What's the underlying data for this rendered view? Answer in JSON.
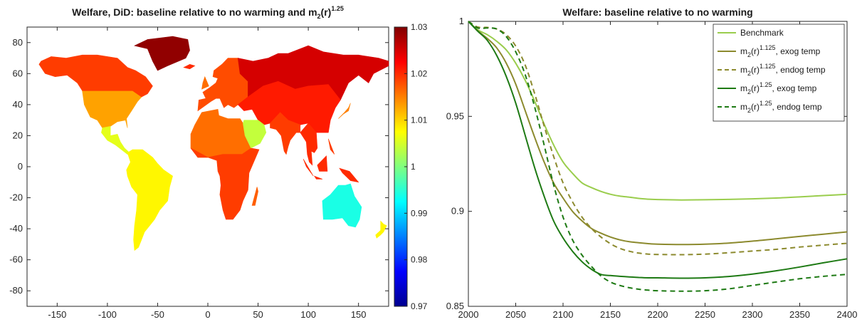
{
  "chart_data": [
    {
      "type": "heatmap",
      "title": "Welfare, DiD: baseline relative to no warming and m",
      "title_sub": "2",
      "title_mid": "(r)",
      "title_sup": "1.25",
      "xlim": [
        -180,
        180
      ],
      "ylim": [
        -90,
        90
      ],
      "x_ticks": [
        "-150",
        "-100",
        "-50",
        "0",
        "50",
        "100",
        "150"
      ],
      "x_tick_values": [
        -150,
        -100,
        -50,
        0,
        50,
        100,
        150
      ],
      "y_ticks": [
        "80",
        "60",
        "40",
        "20",
        "0",
        "-20",
        "-40",
        "-60",
        "-80"
      ],
      "y_tick_values": [
        80,
        60,
        40,
        20,
        0,
        -20,
        -40,
        -60,
        -80
      ],
      "colorbar": {
        "ticks": [
          "1.03",
          "1.02",
          "1.01",
          "1",
          "0.99",
          "0.98",
          "0.97"
        ],
        "tick_values": [
          1.03,
          1.02,
          1.01,
          1.0,
          0.99,
          0.98,
          0.97
        ],
        "range": [
          0.97,
          1.03
        ],
        "colormap": "jet"
      },
      "regions": [
        {
          "name": "North America",
          "value": 1.013
        },
        {
          "name": "Canada / Alaska",
          "value": 1.019
        },
        {
          "name": "Greenland",
          "value": 1.029
        },
        {
          "name": "Central America",
          "value": 1.006
        },
        {
          "name": "South America",
          "value": 1.008
        },
        {
          "name": "Europe",
          "value": 1.018
        },
        {
          "name": "Africa (north)",
          "value": 1.016
        },
        {
          "name": "Africa (central/south)",
          "value": 1.019
        },
        {
          "name": "Russia",
          "value": 1.025
        },
        {
          "name": "Asia",
          "value": 1.021
        },
        {
          "name": "South Asia",
          "value": 1.019
        },
        {
          "name": "Southeast Asia",
          "value": 1.02
        },
        {
          "name": "Australia",
          "value": 0.994
        },
        {
          "name": "New Zealand",
          "value": 1.008
        },
        {
          "name": "Arabian Peninsula",
          "value": 1.004
        }
      ]
    },
    {
      "type": "line",
      "title": "Welfare: baseline relative to no warming",
      "xlim": [
        2000,
        2400
      ],
      "ylim": [
        0.85,
        1.0
      ],
      "x_ticks": [
        "2000",
        "2050",
        "2100",
        "2150",
        "2200",
        "2250",
        "2300",
        "2350",
        "2400"
      ],
      "x_tick_values": [
        2000,
        2050,
        2100,
        2150,
        2200,
        2250,
        2300,
        2350,
        2400
      ],
      "y_ticks": [
        "1",
        "0.95",
        "0.9",
        "0.85"
      ],
      "y_tick_values": [
        1.0,
        0.95,
        0.9,
        0.85
      ],
      "legend_position": "top-right",
      "x": [
        2000,
        2010,
        2020,
        2030,
        2040,
        2050,
        2060,
        2070,
        2080,
        2090,
        2100,
        2110,
        2120,
        2130,
        2140,
        2150,
        2160,
        2170,
        2180,
        2190,
        2200,
        2225,
        2250,
        2275,
        2300,
        2325,
        2350,
        2375,
        2400
      ],
      "series": [
        {
          "name": "Benchmark",
          "color": "#9ACD4D",
          "dash": false,
          "values": [
            1.0,
            0.9955,
            0.993,
            0.9895,
            0.985,
            0.978,
            0.969,
            0.958,
            0.946,
            0.935,
            0.926,
            0.92,
            0.915,
            0.9125,
            0.9105,
            0.909,
            0.908,
            0.9075,
            0.9068,
            0.9064,
            0.9062,
            0.906,
            0.9061,
            0.9063,
            0.9066,
            0.907,
            0.9076,
            0.9083,
            0.909
          ]
        },
        {
          "name_main": "m",
          "name_sub": "2",
          "name_mid": "(r)",
          "name_sup": "1.125",
          "name_tail": ", exog temp",
          "color": "#8C8A2E",
          "dash": false,
          "values": [
            1.0,
            0.995,
            0.991,
            0.986,
            0.978,
            0.967,
            0.953,
            0.939,
            0.926,
            0.915,
            0.907,
            0.9,
            0.895,
            0.891,
            0.8885,
            0.8865,
            0.885,
            0.884,
            0.8835,
            0.883,
            0.8827,
            0.8825,
            0.8827,
            0.8833,
            0.8843,
            0.8855,
            0.8868,
            0.888,
            0.8892
          ]
        },
        {
          "name_main": "m",
          "name_sub": "2",
          "name_mid": "(r)",
          "name_sup": "1.125",
          "name_tail": ", endog temp",
          "color": "#8C8A2E",
          "dash": true,
          "values": [
            1.0,
            0.997,
            0.9968,
            0.996,
            0.993,
            0.987,
            0.977,
            0.962,
            0.945,
            0.929,
            0.915,
            0.905,
            0.897,
            0.891,
            0.8865,
            0.883,
            0.8805,
            0.879,
            0.878,
            0.8775,
            0.8773,
            0.8772,
            0.8775,
            0.8782,
            0.8791,
            0.88,
            0.8812,
            0.8822,
            0.8832
          ]
        },
        {
          "name_main": "m",
          "name_sub": "2",
          "name_mid": "(r)",
          "name_sup": "1.25",
          "name_tail": ", exog temp",
          "color": "#1E7A14",
          "dash": false,
          "values": [
            1.0,
            0.9948,
            0.99,
            0.982,
            0.971,
            0.957,
            0.94,
            0.923,
            0.908,
            0.895,
            0.886,
            0.879,
            0.8735,
            0.8695,
            0.8668,
            0.8662,
            0.8658,
            0.8655,
            0.8652,
            0.865,
            0.865,
            0.8648,
            0.865,
            0.8657,
            0.867,
            0.8687,
            0.8707,
            0.8729,
            0.875
          ]
        },
        {
          "name_main": "m",
          "name_sub": "2",
          "name_mid": "(r)",
          "name_sup": "1.25",
          "name_tail": ", endog temp",
          "color": "#1E7A14",
          "dash": true,
          "values": [
            1.0,
            0.9965,
            0.9965,
            0.996,
            0.992,
            0.984,
            0.972,
            0.955,
            0.935,
            0.914,
            0.897,
            0.885,
            0.877,
            0.871,
            0.866,
            0.8628,
            0.861,
            0.8598,
            0.859,
            0.8585,
            0.8582,
            0.858,
            0.8582,
            0.8592,
            0.861,
            0.8628,
            0.8645,
            0.8658,
            0.8668
          ]
        }
      ]
    }
  ]
}
